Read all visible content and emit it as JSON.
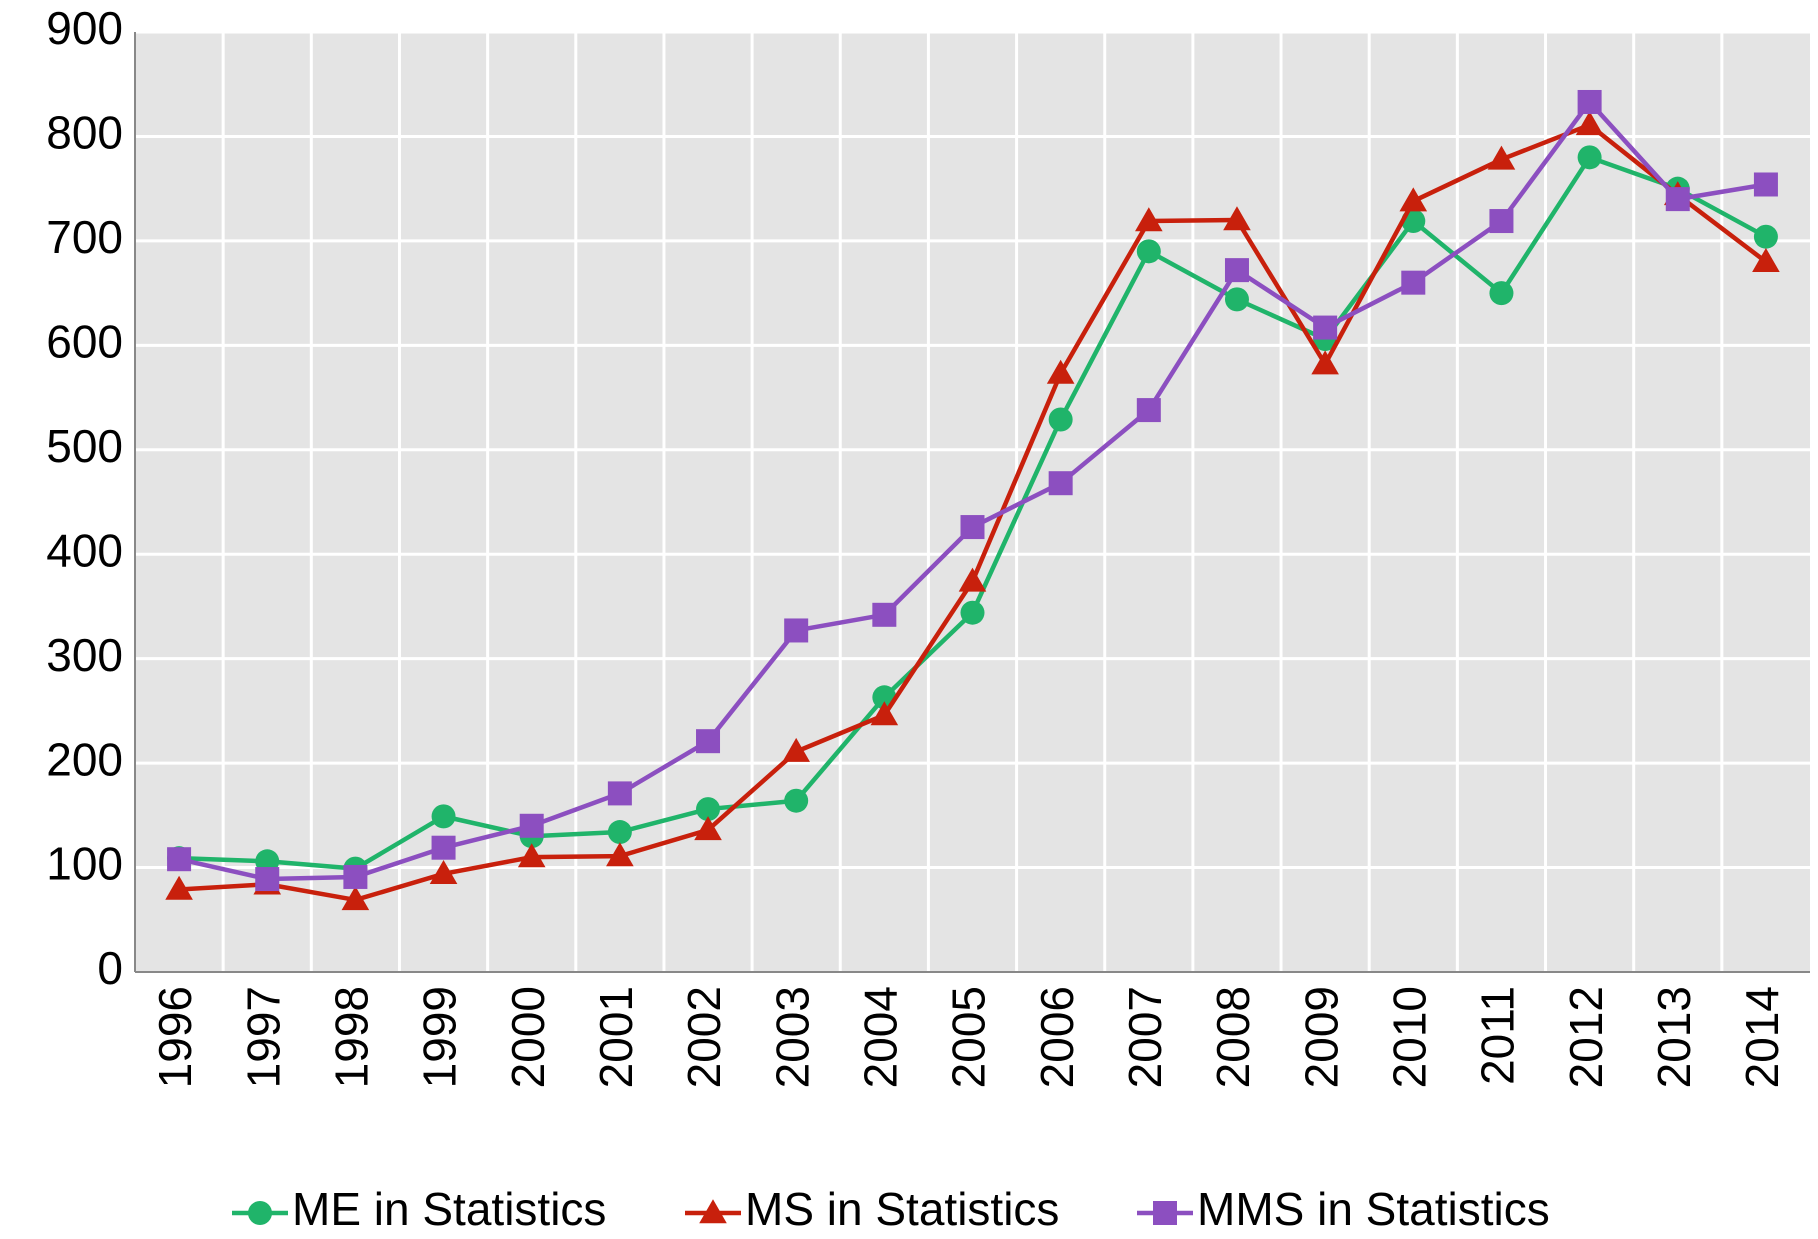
{
  "chart_data": {
    "type": "line",
    "categories": [
      "1996",
      "1997",
      "1998",
      "1999",
      "2000",
      "2001",
      "2002",
      "2003",
      "2004",
      "2005",
      "2006",
      "2007",
      "2008",
      "2009",
      "2010",
      "2011",
      "2012",
      "2013",
      "2014"
    ],
    "series": [
      {
        "name": "ME in Statistics",
        "color": "#20b46a",
        "marker": "circle",
        "values": [
          109,
          106,
          99,
          149,
          130,
          134,
          156,
          164,
          263,
          344,
          529,
          690,
          644,
          606,
          719,
          650,
          780,
          750,
          704
        ]
      },
      {
        "name": "MS in Statistics",
        "color": "#c8200c",
        "marker": "triangle",
        "values": [
          79,
          84,
          69,
          94,
          110,
          111,
          136,
          211,
          246,
          374,
          573,
          719,
          720,
          582,
          738,
          778,
          811,
          744,
          680
        ]
      },
      {
        "name": "MMS in Statistics",
        "color": "#8c4fc0",
        "marker": "square",
        "values": [
          108,
          89,
          91,
          119,
          140,
          171,
          221,
          327,
          342,
          426,
          468,
          538,
          672,
          617,
          660,
          719,
          833,
          740,
          754
        ]
      }
    ],
    "ylim": [
      0,
      900
    ],
    "yticks": [
      0,
      100,
      200,
      300,
      400,
      500,
      600,
      700,
      800,
      900
    ],
    "grid": true,
    "legend": "bottom"
  }
}
